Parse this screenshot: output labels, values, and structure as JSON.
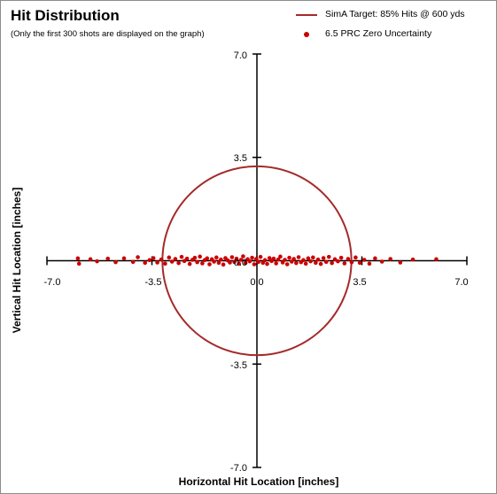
{
  "header": {
    "title": "Hit Distribution",
    "subtitle": "(Only the first 300 shots are displayed on the graph)"
  },
  "legend": {
    "target_label": "SimA Target:  85% Hits @ 600 yds",
    "shots_label": "6.5 PRC Zero Uncertainty"
  },
  "colors": {
    "target": "#a52a2a",
    "shots": "#cc0000"
  },
  "chart_data": {
    "type": "scatter",
    "title": "Hit Distribution",
    "subtitle": "(Only the first 300 shots are displayed on the graph)",
    "xlabel": "Horizontal Hit Location [inches]",
    "ylabel": "Vertical Hit Location [inches]",
    "xlim": [
      -7.0,
      7.0
    ],
    "ylim": [
      -7.0,
      7.0
    ],
    "x_ticks": [
      "-7.0",
      "-3.5",
      "0.0",
      "3.5",
      "7.0"
    ],
    "y_ticks": [
      "7.0",
      "3.5",
      "0.0",
      "-3.5",
      "-7.0"
    ],
    "grid": false,
    "legend_position": "top-right",
    "series": [
      {
        "name": "SimA Target:  85% Hits @ 600 yds",
        "type": "circle",
        "center": [
          0.0,
          0.0
        ],
        "radius": 3.15
      },
      {
        "name": "6.5 PRC Zero Uncertainty",
        "type": "scatter",
        "points": [
          [
            -5.97,
            0.08
          ],
          [
            -5.93,
            -0.1
          ],
          [
            -5.55,
            0.05
          ],
          [
            -5.33,
            -0.02
          ],
          [
            -4.97,
            0.07
          ],
          [
            -4.71,
            -0.05
          ],
          [
            -4.43,
            0.08
          ],
          [
            -4.13,
            -0.04
          ],
          [
            -3.97,
            0.12
          ],
          [
            -3.73,
            -0.07
          ],
          [
            -3.58,
            0.02
          ],
          [
            -3.45,
            0.09
          ],
          [
            -3.32,
            -0.06
          ],
          [
            -3.19,
            0.04
          ],
          [
            -3.06,
            -0.1
          ],
          [
            -2.93,
            0.11
          ],
          [
            -2.83,
            -0.03
          ],
          [
            -2.72,
            0.06
          ],
          [
            -2.61,
            -0.08
          ],
          [
            -2.51,
            0.13
          ],
          [
            -2.42,
            -0.01
          ],
          [
            -2.33,
            0.07
          ],
          [
            -2.24,
            -0.11
          ],
          [
            -2.15,
            0.03
          ],
          [
            -2.07,
            0.1
          ],
          [
            -1.99,
            -0.05
          ],
          [
            -1.9,
            0.14
          ],
          [
            -1.82,
            -0.09
          ],
          [
            -1.74,
            0.02
          ],
          [
            -1.66,
            0.08
          ],
          [
            -1.58,
            -0.12
          ],
          [
            -1.5,
            0.05
          ],
          [
            -1.43,
            -0.03
          ],
          [
            -1.35,
            0.11
          ],
          [
            -1.27,
            -0.07
          ],
          [
            -1.2,
            0.04
          ],
          [
            -1.12,
            -0.13
          ],
          [
            -1.05,
            0.09
          ],
          [
            -0.97,
            0.01
          ],
          [
            -0.9,
            -0.06
          ],
          [
            -0.83,
            0.12
          ],
          [
            -0.75,
            -0.04
          ],
          [
            -0.68,
            0.07
          ],
          [
            -0.6,
            -0.1
          ],
          [
            -0.53,
            0.03
          ],
          [
            -0.46,
            0.15
          ],
          [
            -0.38,
            -0.08
          ],
          [
            -0.31,
            0.05
          ],
          [
            -0.24,
            -0.02
          ],
          [
            -0.16,
            0.1
          ],
          [
            -0.09,
            -0.12
          ],
          [
            -0.02,
            0.06
          ],
          [
            0.05,
            -0.04
          ],
          [
            0.12,
            0.13
          ],
          [
            0.2,
            -0.07
          ],
          [
            0.27,
            0.02
          ],
          [
            0.34,
            -0.11
          ],
          [
            0.42,
            0.09
          ],
          [
            0.49,
            -0.01
          ],
          [
            0.56,
            0.07
          ],
          [
            0.64,
            -0.09
          ],
          [
            0.71,
            0.04
          ],
          [
            0.78,
            0.14
          ],
          [
            0.86,
            -0.06
          ],
          [
            0.93,
            0.03
          ],
          [
            1.01,
            -0.12
          ],
          [
            1.08,
            0.1
          ],
          [
            1.16,
            -0.03
          ],
          [
            1.23,
            0.06
          ],
          [
            1.31,
            -0.08
          ],
          [
            1.39,
            0.12
          ],
          [
            1.47,
            -0.05
          ],
          [
            1.55,
            0.02
          ],
          [
            1.63,
            -0.1
          ],
          [
            1.71,
            0.08
          ],
          [
            1.79,
            -0.02
          ],
          [
            1.87,
            0.11
          ],
          [
            1.96,
            -0.07
          ],
          [
            2.04,
            0.04
          ],
          [
            2.13,
            -0.11
          ],
          [
            2.22,
            0.09
          ],
          [
            2.31,
            -0.04
          ],
          [
            2.4,
            0.13
          ],
          [
            2.5,
            -0.08
          ],
          [
            2.6,
            0.05
          ],
          [
            2.7,
            -0.02
          ],
          [
            2.81,
            0.1
          ],
          [
            2.92,
            -0.09
          ],
          [
            3.04,
            0.06
          ],
          [
            3.16,
            -0.05
          ],
          [
            3.29,
            0.11
          ],
          [
            3.43,
            -0.07
          ],
          [
            3.58,
            0.03
          ],
          [
            3.75,
            -0.1
          ],
          [
            3.94,
            0.08
          ],
          [
            4.17,
            -0.03
          ],
          [
            4.45,
            0.06
          ],
          [
            4.78,
            -0.06
          ],
          [
            5.2,
            0.04
          ],
          [
            5.98,
            0.05
          ]
        ]
      }
    ]
  }
}
